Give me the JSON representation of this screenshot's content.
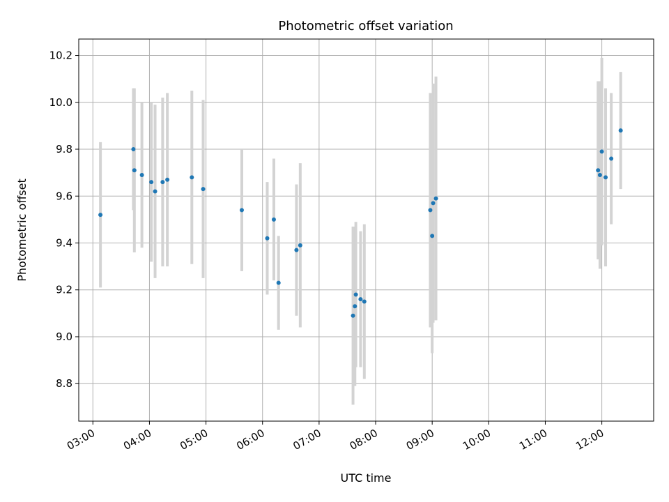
{
  "chart_data": {
    "type": "scatter",
    "title": "Photometric offset variation",
    "xlabel": "UTC time",
    "ylabel": "Photometric offset",
    "x_ticks": [
      "03:00",
      "04:00",
      "05:00",
      "06:00",
      "07:00",
      "08:00",
      "09:00",
      "10:00",
      "11:00",
      "12:00"
    ],
    "y_ticks": [
      "8.8",
      "9.0",
      "9.2",
      "9.4",
      "9.6",
      "9.8",
      "10.0",
      "10.2"
    ],
    "xlim": [
      "02:45",
      "12:55"
    ],
    "ylim": [
      8.64,
      10.27
    ],
    "grid": true,
    "point_color": "#1f77b4",
    "errorbar_color": "#d3d3d3",
    "points": [
      {
        "t": "03:08",
        "y": 9.52,
        "err": 0.31
      },
      {
        "t": "03:43",
        "y": 9.8,
        "err": 0.26
      },
      {
        "t": "03:44",
        "y": 9.71,
        "err": 0.35
      },
      {
        "t": "03:52",
        "y": 9.69,
        "err": 0.31
      },
      {
        "t": "04:02",
        "y": 9.66,
        "err": 0.34
      },
      {
        "t": "04:06",
        "y": 9.62,
        "err": 0.37
      },
      {
        "t": "04:14",
        "y": 9.66,
        "err": 0.36
      },
      {
        "t": "04:19",
        "y": 9.67,
        "err": 0.37
      },
      {
        "t": "04:45",
        "y": 9.68,
        "err": 0.37
      },
      {
        "t": "04:57",
        "y": 9.63,
        "err": 0.38
      },
      {
        "t": "05:38",
        "y": 9.54,
        "err": 0.26
      },
      {
        "t": "06:05",
        "y": 9.42,
        "err": 0.24
      },
      {
        "t": "06:12",
        "y": 9.5,
        "err": 0.26
      },
      {
        "t": "06:17",
        "y": 9.23,
        "err": 0.2
      },
      {
        "t": "06:36",
        "y": 9.37,
        "err": 0.28
      },
      {
        "t": "06:40",
        "y": 9.39,
        "err": 0.35
      },
      {
        "t": "07:36",
        "y": 9.09,
        "err": 0.38
      },
      {
        "t": "07:38",
        "y": 9.13,
        "err": 0.34
      },
      {
        "t": "07:39",
        "y": 9.18,
        "err": 0.31
      },
      {
        "t": "07:44",
        "y": 9.16,
        "err": 0.29
      },
      {
        "t": "07:48",
        "y": 9.15,
        "err": 0.33
      },
      {
        "t": "08:58",
        "y": 9.54,
        "err": 0.5
      },
      {
        "t": "09:00",
        "y": 9.43,
        "err": 0.5
      },
      {
        "t": "09:01",
        "y": 9.57,
        "err": 0.51
      },
      {
        "t": "09:04",
        "y": 9.59,
        "err": 0.52
      },
      {
        "t": "11:56",
        "y": 9.71,
        "err": 0.38
      },
      {
        "t": "11:58",
        "y": 9.69,
        "err": 0.4
      },
      {
        "t": "12:00",
        "y": 9.79,
        "err": 0.4
      },
      {
        "t": "12:04",
        "y": 9.68,
        "err": 0.38
      },
      {
        "t": "12:10",
        "y": 9.76,
        "err": 0.28
      },
      {
        "t": "12:20",
        "y": 9.88,
        "err": 0.25
      }
    ]
  }
}
